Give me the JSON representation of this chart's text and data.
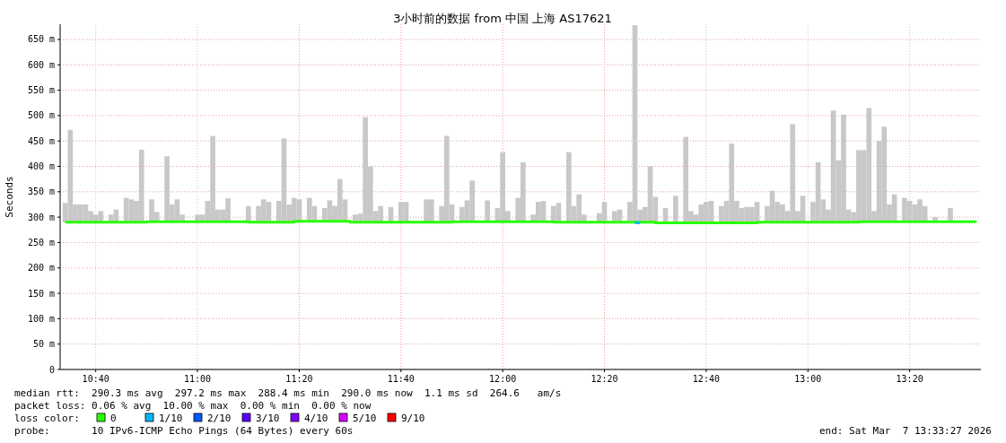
{
  "chart_data": {
    "type": "bar",
    "title": "3小时前的数据 from 中国 上海 AS17621",
    "ylabel": "Seconds",
    "x": [
      "2026-03-07T10:34",
      "2026-03-07T10:35",
      "2026-03-07T10:36",
      "2026-03-07T10:37",
      "2026-03-07T10:38",
      "2026-03-07T10:39",
      "2026-03-07T10:40",
      "2026-03-07T10:41",
      "2026-03-07T10:43",
      "2026-03-07T10:44",
      "2026-03-07T10:46",
      "2026-03-07T10:47",
      "2026-03-07T10:48",
      "2026-03-07T10:49",
      "2026-03-07T10:51",
      "2026-03-07T10:52",
      "2026-03-07T10:54",
      "2026-03-07T10:55",
      "2026-03-07T10:56",
      "2026-03-07T10:57",
      "2026-03-07T11:00",
      "2026-03-07T11:01",
      "2026-03-07T11:02",
      "2026-03-07T11:03",
      "2026-03-07T11:04",
      "2026-03-07T11:05",
      "2026-03-07T11:06",
      "2026-03-07T11:10",
      "2026-03-07T11:12",
      "2026-03-07T11:13",
      "2026-03-07T11:14",
      "2026-03-07T11:16",
      "2026-03-07T11:17",
      "2026-03-07T11:18",
      "2026-03-07T11:19",
      "2026-03-07T11:20",
      "2026-03-07T11:22",
      "2026-03-07T11:23",
      "2026-03-07T11:25",
      "2026-03-07T11:26",
      "2026-03-07T11:27",
      "2026-03-07T11:28",
      "2026-03-07T11:29",
      "2026-03-07T11:31",
      "2026-03-07T11:32",
      "2026-03-07T11:33",
      "2026-03-07T11:34",
      "2026-03-07T11:35",
      "2026-03-07T11:36",
      "2026-03-07T11:38",
      "2026-03-07T11:40",
      "2026-03-07T11:41",
      "2026-03-07T11:45",
      "2026-03-07T11:46",
      "2026-03-07T11:48",
      "2026-03-07T11:49",
      "2026-03-07T11:50",
      "2026-03-07T11:52",
      "2026-03-07T11:53",
      "2026-03-07T11:54",
      "2026-03-07T11:57",
      "2026-03-07T11:59",
      "2026-03-07T12:00",
      "2026-03-07T12:01",
      "2026-03-07T12:03",
      "2026-03-07T12:04",
      "2026-03-07T12:06",
      "2026-03-07T12:07",
      "2026-03-07T12:08",
      "2026-03-07T12:10",
      "2026-03-07T12:11",
      "2026-03-07T12:13",
      "2026-03-07T12:14",
      "2026-03-07T12:15",
      "2026-03-07T12:16",
      "2026-03-07T12:19",
      "2026-03-07T12:20",
      "2026-03-07T12:22",
      "2026-03-07T12:23",
      "2026-03-07T12:25",
      "2026-03-07T12:26",
      "2026-03-07T12:27",
      "2026-03-07T12:28",
      "2026-03-07T12:29",
      "2026-03-07T12:30",
      "2026-03-07T12:32",
      "2026-03-07T12:34",
      "2026-03-07T12:36",
      "2026-03-07T12:37",
      "2026-03-07T12:38",
      "2026-03-07T12:39",
      "2026-03-07T12:40",
      "2026-03-07T12:41",
      "2026-03-07T12:43",
      "2026-03-07T12:44",
      "2026-03-07T12:45",
      "2026-03-07T12:46",
      "2026-03-07T12:47",
      "2026-03-07T12:48",
      "2026-03-07T12:49",
      "2026-03-07T12:50",
      "2026-03-07T12:52",
      "2026-03-07T12:53",
      "2026-03-07T12:54",
      "2026-03-07T12:55",
      "2026-03-07T12:56",
      "2026-03-07T12:57",
      "2026-03-07T12:58",
      "2026-03-07T12:59",
      "2026-03-07T13:01",
      "2026-03-07T13:02",
      "2026-03-07T13:03",
      "2026-03-07T13:04",
      "2026-03-07T13:05",
      "2026-03-07T13:06",
      "2026-03-07T13:07",
      "2026-03-07T13:08",
      "2026-03-07T13:09",
      "2026-03-07T13:10",
      "2026-03-07T13:11",
      "2026-03-07T13:12",
      "2026-03-07T13:13",
      "2026-03-07T13:14",
      "2026-03-07T13:15",
      "2026-03-07T13:16",
      "2026-03-07T13:17",
      "2026-03-07T13:19",
      "2026-03-07T13:20",
      "2026-03-07T13:21",
      "2026-03-07T13:22",
      "2026-03-07T13:23",
      "2026-03-07T13:25",
      "2026-03-07T13:28"
    ],
    "series": [
      {
        "color": "#c8c8c8",
        "base": [
          290,
          290,
          290,
          290,
          290,
          290,
          290,
          290,
          290,
          290,
          290,
          290,
          290,
          290,
          290,
          290,
          290,
          290,
          290,
          290,
          290,
          290,
          290,
          290,
          290,
          290,
          290,
          290,
          290,
          290,
          290,
          290,
          290,
          290,
          290,
          290,
          290,
          290,
          290,
          290,
          290,
          290,
          290,
          290,
          290,
          290,
          290,
          290,
          290,
          290,
          290,
          290,
          290,
          290,
          290,
          290,
          290,
          290,
          290,
          290,
          290,
          290,
          290,
          290,
          290,
          290,
          290,
          290,
          290,
          290,
          290,
          290,
          290,
          290,
          290,
          290,
          290,
          290,
          290,
          290,
          290,
          290,
          290,
          290,
          290,
          290,
          290,
          290,
          290,
          290,
          290,
          290,
          290,
          290,
          290,
          290,
          290,
          290,
          290,
          290,
          290,
          290,
          290,
          290,
          290,
          290,
          290,
          290,
          290,
          290,
          290,
          290,
          290,
          290,
          290,
          290,
          290,
          290,
          290,
          290,
          290,
          290,
          290,
          290,
          290,
          290,
          290,
          290,
          290,
          290,
          290,
          290,
          290
        ],
        "values": [
          38,
          182,
          35,
          35,
          35,
          22,
          15,
          22,
          15,
          25,
          48,
          45,
          42,
          143,
          45,
          20,
          130,
          35,
          45,
          15,
          15,
          15,
          42,
          170,
          25,
          25,
          47,
          32,
          32,
          45,
          40,
          42,
          165,
          35,
          48,
          45,
          48,
          32,
          28,
          43,
          32,
          85,
          45,
          15,
          17,
          207,
          110,
          22,
          32,
          30,
          40,
          40,
          45,
          45,
          32,
          170,
          35,
          30,
          43,
          82,
          43,
          28,
          138,
          22,
          48,
          118,
          15,
          40,
          42,
          32,
          38,
          138,
          32,
          55,
          15,
          18,
          40,
          22,
          25,
          40,
          388,
          25,
          30,
          110,
          50,
          28,
          52,
          168,
          22,
          15,
          35,
          40,
          42,
          32,
          42,
          155,
          42,
          28,
          30,
          30,
          40,
          32,
          62,
          40,
          35,
          22,
          193,
          22,
          52,
          40,
          118,
          45,
          25,
          220,
          122,
          212,
          25,
          20,
          142,
          142,
          225,
          22,
          160,
          188,
          35,
          55,
          48,
          42,
          35,
          45,
          32,
          10,
          28
        ]
      },
      {
        "type": "line",
        "name": "0",
        "color": "#26ff00",
        "x": [
          "2026-03-07T10:34",
          "2026-03-07T10:50",
          "2026-03-07T11:10",
          "2026-03-07T11:19",
          "2026-03-07T11:30",
          "2026-03-07T11:50",
          "2026-03-07T12:10",
          "2026-03-07T12:30",
          "2026-03-07T12:50",
          "2026-03-07T13:10",
          "2026-03-07T13:33"
        ],
        "values": [
          290,
          291,
          290,
          292,
          290,
          291,
          290,
          289,
          290,
          291,
          290
        ]
      },
      {
        "type": "line",
        "name": "1/10",
        "color": "#00b8ff",
        "x": [
          "2026-03-07T12:26",
          "2026-03-07T12:27"
        ],
        "values": [
          289,
          289
        ]
      },
      {
        "type": "line",
        "name": "2/10",
        "color": "#0059ff",
        "values": [
          null,
          null,
          null,
          null,
          null,
          null,
          null,
          null,
          null,
          null,
          null,
          null,
          null,
          null,
          null,
          null,
          null,
          null,
          null,
          null,
          null,
          null,
          null,
          null,
          null,
          null,
          null,
          null,
          null,
          null,
          null,
          null,
          null,
          null,
          null,
          null,
          null,
          null,
          null,
          null,
          null,
          null,
          null,
          null,
          null,
          null,
          null,
          null,
          null,
          null,
          null,
          null,
          null,
          null,
          null,
          null,
          null,
          null,
          null,
          null,
          null,
          null,
          null,
          null,
          null,
          null,
          null,
          null,
          null,
          null,
          null,
          null,
          null,
          null,
          null,
          null,
          null,
          null,
          null,
          null,
          null,
          null,
          null,
          null,
          null,
          null,
          null,
          null,
          null,
          null,
          null,
          null,
          null,
          null,
          null,
          null,
          null,
          null,
          null,
          null,
          null,
          null,
          null,
          null,
          null,
          null,
          null,
          null,
          null,
          null,
          null,
          null,
          null,
          null,
          null,
          null,
          null,
          null,
          null,
          null,
          null,
          null,
          null,
          null,
          null,
          null,
          null,
          null,
          null,
          null,
          null,
          null,
          null
        ]
      },
      {
        "type": "line",
        "name": "3/10",
        "color": "#5e00ff",
        "values": [
          null,
          null,
          null,
          null,
          null,
          null,
          null,
          null,
          null,
          null,
          null,
          null,
          null,
          null,
          null,
          null,
          null,
          null,
          null,
          null,
          null,
          null,
          null,
          null,
          null,
          null,
          null,
          null,
          null,
          null,
          null,
          null,
          null,
          null,
          null,
          null,
          null,
          null,
          null,
          null,
          null,
          null,
          null,
          null,
          null,
          null,
          null,
          null,
          null,
          null,
          null,
          null,
          null,
          null,
          null,
          null,
          null,
          null,
          null,
          null,
          null,
          null,
          null,
          null,
          null,
          null,
          null,
          null,
          null,
          null,
          null,
          null,
          null,
          null,
          null,
          null,
          null,
          null,
          null,
          null,
          null,
          null,
          null,
          null,
          null,
          null,
          null,
          null,
          null,
          null,
          null,
          null,
          null,
          null,
          null,
          null,
          null,
          null,
          null,
          null,
          null,
          null,
          null,
          null,
          null,
          null,
          null,
          null,
          null,
          null,
          null,
          null,
          null,
          null,
          null,
          null,
          null,
          null,
          null,
          null,
          null,
          null,
          null,
          null,
          null,
          null,
          null,
          null,
          null,
          null,
          null,
          null,
          null
        ]
      },
      {
        "type": "line",
        "name": "4/10",
        "color": "#7e00ff",
        "values": [
          null,
          null,
          null,
          null,
          null,
          null,
          null,
          null,
          null,
          null,
          null,
          null,
          null,
          null,
          null,
          null,
          null,
          null,
          null,
          null,
          null,
          null,
          null,
          null,
          null,
          null,
          null,
          null,
          null,
          null,
          null,
          null,
          null,
          null,
          null,
          null,
          null,
          null,
          null,
          null,
          null,
          null,
          null,
          null,
          null,
          null,
          null,
          null,
          null,
          null,
          null,
          null,
          null,
          null,
          null,
          null,
          null,
          null,
          null,
          null,
          null,
          null,
          null,
          null,
          null,
          null,
          null,
          null,
          null,
          null,
          null,
          null,
          null,
          null,
          null,
          null,
          null,
          null,
          null,
          null,
          null,
          null,
          null,
          null,
          null,
          null,
          null,
          null,
          null,
          null,
          null,
          null,
          null,
          null,
          null,
          null,
          null,
          null,
          null,
          null,
          null,
          null,
          null,
          null,
          null,
          null,
          null,
          null,
          null,
          null,
          null,
          null,
          null,
          null,
          null,
          null,
          null,
          null,
          null,
          null,
          null,
          null,
          null,
          null,
          null,
          null,
          null,
          null,
          null,
          null,
          null,
          null,
          null
        ]
      },
      {
        "type": "line",
        "name": "5/10",
        "color": "#dd00ff",
        "values": [
          null,
          null,
          null,
          null,
          null,
          null,
          null,
          null,
          null,
          null,
          null,
          null,
          null,
          null,
          null,
          null,
          null,
          null,
          null,
          null,
          null,
          null,
          null,
          null,
          null,
          null,
          null,
          null,
          null,
          null,
          null,
          null,
          null,
          null,
          null,
          null,
          null,
          null,
          null,
          null,
          null,
          null,
          null,
          null,
          null,
          null,
          null,
          null,
          null,
          null,
          null,
          null,
          null,
          null,
          null,
          null,
          null,
          null,
          null,
          null,
          null,
          null,
          null,
          null,
          null,
          null,
          null,
          null,
          null,
          null,
          null,
          null,
          null,
          null,
          null,
          null,
          null,
          null,
          null,
          null,
          null,
          null,
          null,
          null,
          null,
          null,
          null,
          null,
          null,
          null,
          null,
          null,
          null,
          null,
          null,
          null,
          null,
          null,
          null,
          null,
          null,
          null,
          null,
          null,
          null,
          null,
          null,
          null,
          null,
          null,
          null,
          null,
          null,
          null,
          null,
          null,
          null,
          null,
          null,
          null,
          null,
          null,
          null,
          null,
          null,
          null,
          null,
          null,
          null,
          null,
          null,
          null,
          null
        ]
      },
      {
        "type": "line",
        "name": "9/10",
        "color": "#ff0000",
        "values": [
          null,
          null,
          null,
          null,
          null,
          null,
          null,
          null,
          null,
          null,
          null,
          null,
          null,
          null,
          null,
          null,
          null,
          null,
          null,
          null,
          null,
          null,
          null,
          null,
          null,
          null,
          null,
          null,
          null,
          null,
          null,
          null,
          null,
          null,
          null,
          null,
          null,
          null,
          null,
          null,
          null,
          null,
          null,
          null,
          null,
          null,
          null,
          null,
          null,
          null,
          null,
          null,
          null,
          null,
          null,
          null,
          null,
          null,
          null,
          null,
          null,
          null,
          null,
          null,
          null,
          null,
          null,
          null,
          null,
          null,
          null,
          null,
          null,
          null,
          null,
          null,
          null,
          null,
          null,
          null,
          null,
          null,
          null,
          null,
          null,
          null,
          null,
          null,
          null,
          null,
          null,
          null,
          null,
          null,
          null,
          null,
          null,
          null,
          null,
          null,
          null,
          null,
          null,
          null,
          null,
          null,
          null,
          null,
          null,
          null,
          null,
          null,
          null,
          null,
          null,
          null,
          null,
          null,
          null,
          null,
          null,
          null,
          null,
          null,
          null,
          null,
          null,
          null,
          null,
          null,
          null,
          null,
          null
        ]
      }
    ],
    "legend": "bottom",
    "legend_title": "loss color:",
    "grid": true,
    "xlim": [
      "2026-03-07T10:33",
      "2026-03-07T13:34"
    ],
    "xticks": [
      {
        "value": "2026-03-07T10:40",
        "label": "10:40"
      },
      {
        "value": "2026-03-07T11:00",
        "label": "11:00"
      },
      {
        "value": "2026-03-07T11:20",
        "label": "11:20"
      },
      {
        "value": "2026-03-07T11:40",
        "label": "11:40"
      },
      {
        "value": "2026-03-07T12:00",
        "label": "12:00"
      },
      {
        "value": "2026-03-07T12:20",
        "label": "12:20"
      },
      {
        "value": "2026-03-07T12:40",
        "label": "12:40"
      },
      {
        "value": "2026-03-07T13:00",
        "label": "13:00"
      },
      {
        "value": "2026-03-07T13:20",
        "label": "13:20"
      }
    ],
    "ylim": [
      0,
      680
    ],
    "yticks": [
      0,
      {
        "value": 50,
        "label": "50 m"
      },
      {
        "value": 100,
        "label": "100 m"
      },
      {
        "value": 150,
        "label": "150 m"
      },
      {
        "value": 200,
        "label": "200 m"
      },
      {
        "value": 250,
        "label": "250 m"
      },
      {
        "value": 300,
        "label": "300 m"
      },
      {
        "value": 350,
        "label": "350 m"
      },
      {
        "value": 400,
        "label": "400 m"
      },
      {
        "value": 450,
        "label": "450 m"
      },
      {
        "value": 500,
        "label": "500 m"
      },
      {
        "value": 550,
        "label": "550 m"
      },
      {
        "value": 600,
        "label": "600 m"
      },
      {
        "value": 650,
        "label": "650 m"
      }
    ],
    "ref_lines": [
      {
        "axis": "x",
        "value": "2026-03-07T11:20",
        "color": "#ff9999",
        "line_style": "dotted"
      },
      {
        "axis": "x",
        "value": "2026-03-07T11:40",
        "color": "#ff9999",
        "line_style": "dotted"
      },
      {
        "axis": "x",
        "value": "2026-03-07T12:00",
        "color": "#ff9999",
        "line_style": "dotted"
      },
      {
        "axis": "x",
        "value": "2026-03-07T12:20",
        "color": "#ff9999",
        "line_style": "dotted"
      }
    ],
    "annotations": [
      "median rtt:  290.3 ms avg  297.2 ms max  288.4 ms min  290.0 ms now  1.1 ms sd  264.6   am/s",
      "packet loss: 0.06 % avg  10.00 % max  0.00 % min  0.00 % now",
      "probe:       10 IPv6-ICMP Echo Pings (64 Bytes) every 60s",
      "end: Sat Mar  7 13:33:27 2026"
    ]
  }
}
